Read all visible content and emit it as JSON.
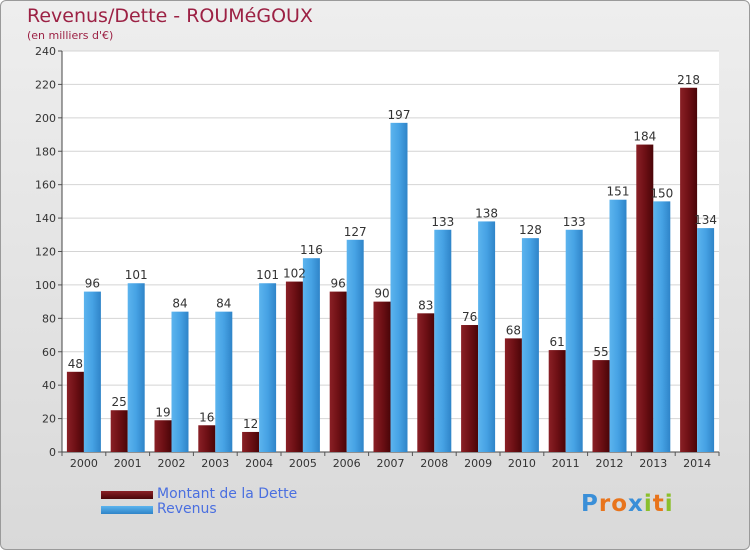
{
  "header": {
    "title": "Revenus/Dette - ROUMéGOUX",
    "subtitle": "(en milliers d'€)"
  },
  "legend": {
    "debt_label": "Montant de la Dette",
    "revenue_label": "Revenus"
  },
  "logo": {
    "text": "Proxiti"
  },
  "colors": {
    "debt": "#6e1015",
    "revenue": "#3f9be0",
    "title": "#9c2144",
    "legend_text": "#4a6fe0"
  },
  "chart_data": {
    "type": "bar",
    "title": "Revenus/Dette - ROUMéGOUX",
    "ylabel": "(en milliers d'€)",
    "xlabel": "",
    "ylim": [
      0,
      240
    ],
    "yticks": [
      0,
      20,
      40,
      60,
      80,
      100,
      120,
      140,
      160,
      180,
      200,
      220,
      240
    ],
    "grid": true,
    "legend_position": "bottom-left",
    "categories": [
      "2000",
      "2001",
      "2002",
      "2003",
      "2004",
      "2005",
      "2006",
      "2007",
      "2008",
      "2009",
      "2010",
      "2011",
      "2012",
      "2013",
      "2014"
    ],
    "series": [
      {
        "name": "Montant de la Dette",
        "values": [
          48,
          25,
          19,
          16,
          12,
          102,
          96,
          90,
          83,
          76,
          68,
          61,
          55,
          184,
          218
        ]
      },
      {
        "name": "Revenus",
        "values": [
          96,
          101,
          84,
          84,
          101,
          116,
          127,
          197,
          133,
          138,
          128,
          133,
          151,
          150,
          134
        ]
      }
    ]
  }
}
